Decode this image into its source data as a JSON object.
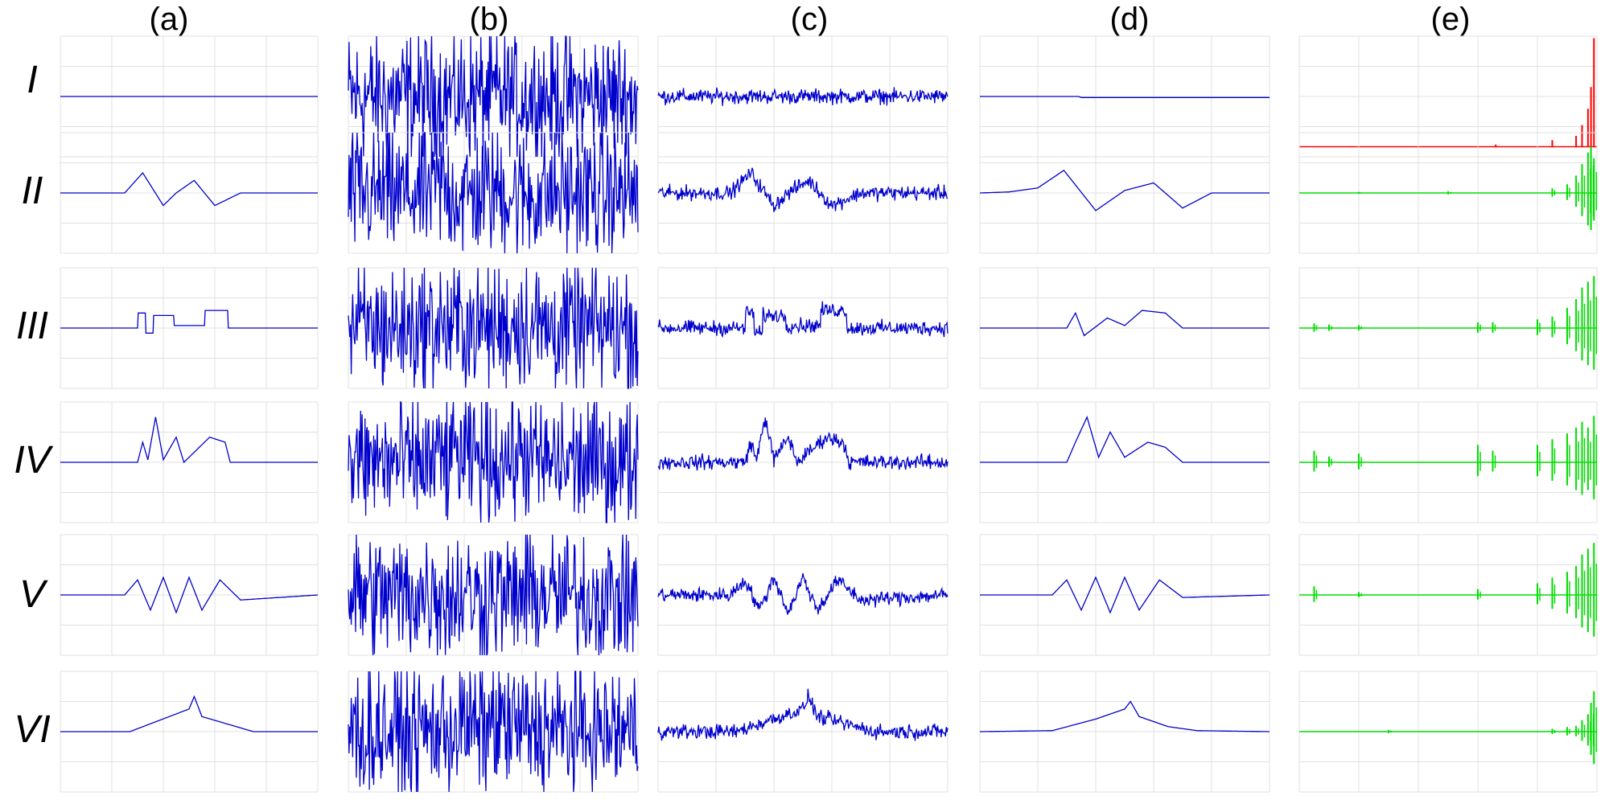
{
  "column_labels": [
    "(a)",
    "(b)",
    "(c)",
    "(d)",
    "(e)"
  ],
  "row_labels": [
    "I",
    "II",
    "III",
    "IV",
    "V",
    "VI"
  ],
  "colors": {
    "signal": "#0000cc",
    "coeff_top": "#ff0000",
    "coeff": "#00dd00",
    "grid": "#e0e0e0"
  },
  "chart_data": {
    "type": "line",
    "layout": "6x5 small-multiples",
    "columns": [
      "(a)",
      "(b)",
      "(c)",
      "(d)",
      "(e)"
    ],
    "rows": [
      "I",
      "II",
      "III",
      "IV",
      "V",
      "VI"
    ],
    "x_range": [
      0,
      1
    ],
    "y_range": [
      -1.2,
      1.2
    ],
    "grid": true,
    "series_by_row": [
      {
        "row": "I",
        "clean_shape": "flat",
        "clean_keypoints": [
          [
            0,
            0
          ],
          [
            1,
            0
          ]
        ],
        "noise_level": 0.18,
        "recovered_keypoints": [
          [
            0,
            0
          ],
          [
            0.34,
            0
          ],
          [
            0.35,
            -0.02
          ],
          [
            1,
            -0.02
          ]
        ],
        "coeff_spikes": [
          [
            0.66,
            0.02
          ],
          [
            0.85,
            0.06
          ],
          [
            0.93,
            0.1
          ],
          [
            0.95,
            0.2
          ],
          [
            0.97,
            0.35
          ],
          [
            0.98,
            0.55
          ],
          [
            0.99,
            1.0
          ]
        ]
      },
      {
        "row": "II",
        "clean_shape": "smooth-bumps",
        "clean_keypoints": [
          [
            0,
            0
          ],
          [
            0.25,
            0
          ],
          [
            0.32,
            0.4
          ],
          [
            0.4,
            -0.25
          ],
          [
            0.45,
            0.0
          ],
          [
            0.52,
            0.25
          ],
          [
            0.6,
            -0.25
          ],
          [
            0.7,
            0
          ],
          [
            1,
            0
          ]
        ],
        "noise_level": 0.18,
        "recovered_keypoints": [
          [
            0,
            0
          ],
          [
            0.1,
            0.02
          ],
          [
            0.2,
            0.1
          ],
          [
            0.29,
            0.45
          ],
          [
            0.4,
            -0.35
          ],
          [
            0.5,
            0.05
          ],
          [
            0.6,
            0.2
          ],
          [
            0.7,
            -0.3
          ],
          [
            0.8,
            0
          ],
          [
            1,
            0
          ]
        ],
        "coeff_spikes": [
          [
            0.2,
            0.02
          ],
          [
            0.5,
            0.03
          ],
          [
            0.85,
            0.08
          ],
          [
            0.9,
            0.15
          ],
          [
            0.93,
            0.3
          ],
          [
            0.95,
            0.5
          ],
          [
            0.97,
            0.7
          ],
          [
            0.98,
            0.8
          ],
          [
            0.99,
            0.6
          ]
        ]
      },
      {
        "row": "III",
        "clean_shape": "blocks",
        "clean_keypoints": [
          [
            0,
            0
          ],
          [
            0.3,
            0
          ],
          [
            0.3,
            0.3
          ],
          [
            0.33,
            0.3
          ],
          [
            0.33,
            -0.1
          ],
          [
            0.36,
            -0.1
          ],
          [
            0.36,
            0.25
          ],
          [
            0.44,
            0.25
          ],
          [
            0.44,
            0.05
          ],
          [
            0.56,
            0.05
          ],
          [
            0.56,
            0.35
          ],
          [
            0.65,
            0.35
          ],
          [
            0.65,
            0
          ],
          [
            1,
            0
          ]
        ],
        "noise_level": 0.18,
        "recovered_keypoints": [
          [
            0,
            0
          ],
          [
            0.3,
            0
          ],
          [
            0.33,
            0.3
          ],
          [
            0.36,
            -0.15
          ],
          [
            0.44,
            0.2
          ],
          [
            0.5,
            0.05
          ],
          [
            0.56,
            0.35
          ],
          [
            0.64,
            0.3
          ],
          [
            0.7,
            0
          ],
          [
            1,
            0
          ]
        ],
        "coeff_spikes": [
          [
            0.05,
            0.08
          ],
          [
            0.1,
            0.06
          ],
          [
            0.2,
            0.05
          ],
          [
            0.6,
            0.1
          ],
          [
            0.65,
            0.1
          ],
          [
            0.8,
            0.15
          ],
          [
            0.85,
            0.2
          ],
          [
            0.9,
            0.35
          ],
          [
            0.93,
            0.5
          ],
          [
            0.95,
            0.7
          ],
          [
            0.97,
            0.8
          ],
          [
            0.99,
            0.9
          ]
        ]
      },
      {
        "row": "IV",
        "clean_shape": "bumps",
        "clean_keypoints": [
          [
            0,
            0
          ],
          [
            0.3,
            0
          ],
          [
            0.32,
            0.4
          ],
          [
            0.34,
            0.05
          ],
          [
            0.37,
            0.9
          ],
          [
            0.4,
            0.05
          ],
          [
            0.45,
            0.5
          ],
          [
            0.48,
            0
          ],
          [
            0.58,
            0.5
          ],
          [
            0.64,
            0.4
          ],
          [
            0.66,
            0
          ],
          [
            1,
            0
          ]
        ],
        "noise_level": 0.18,
        "recovered_keypoints": [
          [
            0,
            0
          ],
          [
            0.3,
            0
          ],
          [
            0.33,
            0.4
          ],
          [
            0.37,
            0.9
          ],
          [
            0.41,
            0.1
          ],
          [
            0.45,
            0.6
          ],
          [
            0.5,
            0.1
          ],
          [
            0.58,
            0.4
          ],
          [
            0.64,
            0.3
          ],
          [
            0.7,
            0
          ],
          [
            1,
            0
          ]
        ],
        "coeff_spikes": [
          [
            0.05,
            0.2
          ],
          [
            0.1,
            0.1
          ],
          [
            0.2,
            0.15
          ],
          [
            0.6,
            0.3
          ],
          [
            0.65,
            0.2
          ],
          [
            0.8,
            0.3
          ],
          [
            0.85,
            0.4
          ],
          [
            0.9,
            0.5
          ],
          [
            0.93,
            0.6
          ],
          [
            0.95,
            0.7
          ],
          [
            0.97,
            0.6
          ],
          [
            0.99,
            0.8
          ]
        ]
      },
      {
        "row": "V",
        "clean_shape": "doppler",
        "clean_keypoints": [
          [
            0,
            0
          ],
          [
            0.25,
            0
          ],
          [
            0.3,
            0.3
          ],
          [
            0.35,
            -0.3
          ],
          [
            0.4,
            0.35
          ],
          [
            0.45,
            -0.35
          ],
          [
            0.5,
            0.35
          ],
          [
            0.55,
            -0.3
          ],
          [
            0.62,
            0.3
          ],
          [
            0.7,
            -0.1
          ],
          [
            1,
            0
          ]
        ],
        "noise_level": 0.18,
        "recovered_keypoints": [
          [
            0,
            0
          ],
          [
            0.25,
            0
          ],
          [
            0.3,
            0.3
          ],
          [
            0.35,
            -0.3
          ],
          [
            0.4,
            0.35
          ],
          [
            0.45,
            -0.35
          ],
          [
            0.5,
            0.35
          ],
          [
            0.55,
            -0.3
          ],
          [
            0.62,
            0.3
          ],
          [
            0.7,
            -0.05
          ],
          [
            1,
            0
          ]
        ],
        "coeff_spikes": [
          [
            0.05,
            0.15
          ],
          [
            0.2,
            0.05
          ],
          [
            0.6,
            0.1
          ],
          [
            0.8,
            0.2
          ],
          [
            0.85,
            0.3
          ],
          [
            0.9,
            0.4
          ],
          [
            0.93,
            0.5
          ],
          [
            0.95,
            0.7
          ],
          [
            0.97,
            0.8
          ],
          [
            0.99,
            0.9
          ]
        ]
      },
      {
        "row": "VI",
        "clean_shape": "ramp",
        "clean_keypoints": [
          [
            0,
            0
          ],
          [
            0.27,
            0
          ],
          [
            0.5,
            0.45
          ],
          [
            0.52,
            0.7
          ],
          [
            0.55,
            0.3
          ],
          [
            0.65,
            0.15
          ],
          [
            0.75,
            0
          ],
          [
            1,
            0
          ]
        ],
        "noise_level": 0.18,
        "recovered_keypoints": [
          [
            0,
            0
          ],
          [
            0.25,
            0.02
          ],
          [
            0.4,
            0.25
          ],
          [
            0.5,
            0.45
          ],
          [
            0.52,
            0.6
          ],
          [
            0.55,
            0.3
          ],
          [
            0.65,
            0.1
          ],
          [
            0.75,
            0.02
          ],
          [
            1,
            0
          ]
        ],
        "coeff_spikes": [
          [
            0.3,
            0.03
          ],
          [
            0.85,
            0.05
          ],
          [
            0.9,
            0.08
          ],
          [
            0.93,
            0.1
          ],
          [
            0.95,
            0.2
          ],
          [
            0.97,
            0.3
          ],
          [
            0.98,
            0.5
          ],
          [
            0.99,
            0.7
          ]
        ]
      }
    ]
  }
}
